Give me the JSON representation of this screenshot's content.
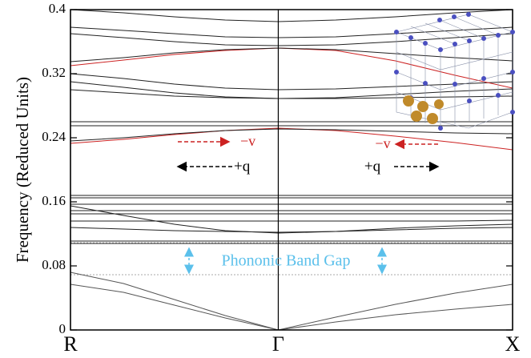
{
  "chart_data": {
    "type": "line",
    "ylabel": "Frequency (Reduced Units)",
    "x": [
      0,
      0.12,
      0.235,
      0.35,
      0.47,
      0.6,
      0.735,
      0.87,
      1
    ],
    "xlim": [
      0,
      1
    ],
    "xticks": [
      {
        "value": 0,
        "label": "R"
      },
      {
        "value": 0.47,
        "label": "Γ"
      },
      {
        "value": 1,
        "label": "X"
      }
    ],
    "ylim": [
      0,
      0.4
    ],
    "yticks": [
      0,
      0.08,
      0.16,
      0.24,
      0.32,
      0.4
    ],
    "band_gap": [
      0.069,
      0.109
    ],
    "band_gap_color": "#5bc0eb",
    "series": [
      {
        "color": "#555555",
        "values": [
          0.072,
          0.058,
          0.038,
          0.018,
          0,
          0.016,
          0.032,
          0.046,
          0.057
        ]
      },
      {
        "color": "#555555",
        "values": [
          0.057,
          0.047,
          0.031,
          0.015,
          0,
          0.01,
          0.019,
          0.026,
          0.032
        ]
      },
      {
        "color": "#222222",
        "values": [
          0.108,
          0.108,
          0.108,
          0.108,
          0.108,
          0.108,
          0.108,
          0.108,
          0.108
        ]
      },
      {
        "color": "#222222",
        "values": [
          0.111,
          0.111,
          0.111,
          0.111,
          0.111,
          0.111,
          0.111,
          0.111,
          0.111
        ]
      },
      {
        "color": "#222222",
        "values": [
          0.155,
          0.143,
          0.132,
          0.124,
          0.121,
          0.123,
          0.127,
          0.13,
          0.132
        ]
      },
      {
        "color": "#222222",
        "values": [
          0.128,
          0.126,
          0.124,
          0.123,
          0.122,
          0.123,
          0.125,
          0.127,
          0.128
        ]
      },
      {
        "color": "#222222",
        "values": [
          0.136,
          0.136,
          0.136,
          0.136,
          0.136,
          0.136,
          0.136,
          0.136,
          0.137
        ]
      },
      {
        "color": "#222222",
        "values": [
          0.145,
          0.145,
          0.145,
          0.145,
          0.145,
          0.145,
          0.145,
          0.145,
          0.145
        ]
      },
      {
        "color": "#222222",
        "values": [
          0.149,
          0.149,
          0.149,
          0.149,
          0.149,
          0.149,
          0.149,
          0.149,
          0.149
        ]
      },
      {
        "color": "#222222",
        "values": [
          0.157,
          0.157,
          0.157,
          0.157,
          0.157,
          0.157,
          0.157,
          0.157,
          0.157
        ]
      },
      {
        "color": "#222222",
        "values": [
          0.165,
          0.165,
          0.165,
          0.165,
          0.165,
          0.165,
          0.165,
          0.165,
          0.165
        ]
      },
      {
        "color": "#222222",
        "values": [
          0.168,
          0.168,
          0.168,
          0.168,
          0.168,
          0.168,
          0.168,
          0.168,
          0.168
        ]
      },
      {
        "color": "#cc2222",
        "values": [
          0.233,
          0.238,
          0.244,
          0.249,
          0.252,
          0.249,
          0.242,
          0.234,
          0.225
        ]
      },
      {
        "color": "#222222",
        "values": [
          0.236,
          0.24,
          0.245,
          0.249,
          0.251,
          0.25,
          0.248,
          0.246,
          0.245
        ]
      },
      {
        "color": "#222222",
        "values": [
          0.255,
          0.255,
          0.255,
          0.255,
          0.255,
          0.255,
          0.255,
          0.255,
          0.255
        ]
      },
      {
        "color": "#222222",
        "values": [
          0.26,
          0.26,
          0.26,
          0.26,
          0.26,
          0.26,
          0.26,
          0.26,
          0.26
        ]
      },
      {
        "color": "#222222",
        "values": [
          0.31,
          0.303,
          0.296,
          0.291,
          0.289,
          0.29,
          0.294,
          0.298,
          0.301
        ]
      },
      {
        "color": "#222222",
        "values": [
          0.3,
          0.296,
          0.292,
          0.29,
          0.289,
          0.289,
          0.29,
          0.291,
          0.292
        ]
      },
      {
        "color": "#222222",
        "values": [
          0.32,
          0.314,
          0.307,
          0.302,
          0.3,
          0.301,
          0.304,
          0.307,
          0.31
        ]
      },
      {
        "color": "#cc2222",
        "values": [
          0.33,
          0.337,
          0.344,
          0.349,
          0.352,
          0.349,
          0.336,
          0.318,
          0.302
        ]
      },
      {
        "color": "#222222",
        "values": [
          0.335,
          0.34,
          0.346,
          0.35,
          0.352,
          0.35,
          0.345,
          0.34,
          0.336
        ]
      },
      {
        "color": "#222222",
        "values": [
          0.37,
          0.365,
          0.36,
          0.356,
          0.355,
          0.356,
          0.36,
          0.365,
          0.37
        ]
      },
      {
        "color": "#222222",
        "values": [
          0.378,
          0.374,
          0.37,
          0.366,
          0.365,
          0.366,
          0.37,
          0.374,
          0.378
        ]
      },
      {
        "color": "#222222",
        "values": [
          0.4,
          0.396,
          0.391,
          0.387,
          0.385,
          0.387,
          0.391,
          0.396,
          0.4
        ]
      }
    ],
    "annotations": [
      {
        "text": "−v",
        "color": "#cc2222"
      },
      {
        "text": "+q",
        "color": "#000000"
      },
      {
        "text": "−v",
        "color": "#cc2222"
      },
      {
        "text": "+q",
        "color": "#000000"
      },
      {
        "text": "Phononic Band Gap",
        "color": "#5bc0eb"
      }
    ]
  }
}
